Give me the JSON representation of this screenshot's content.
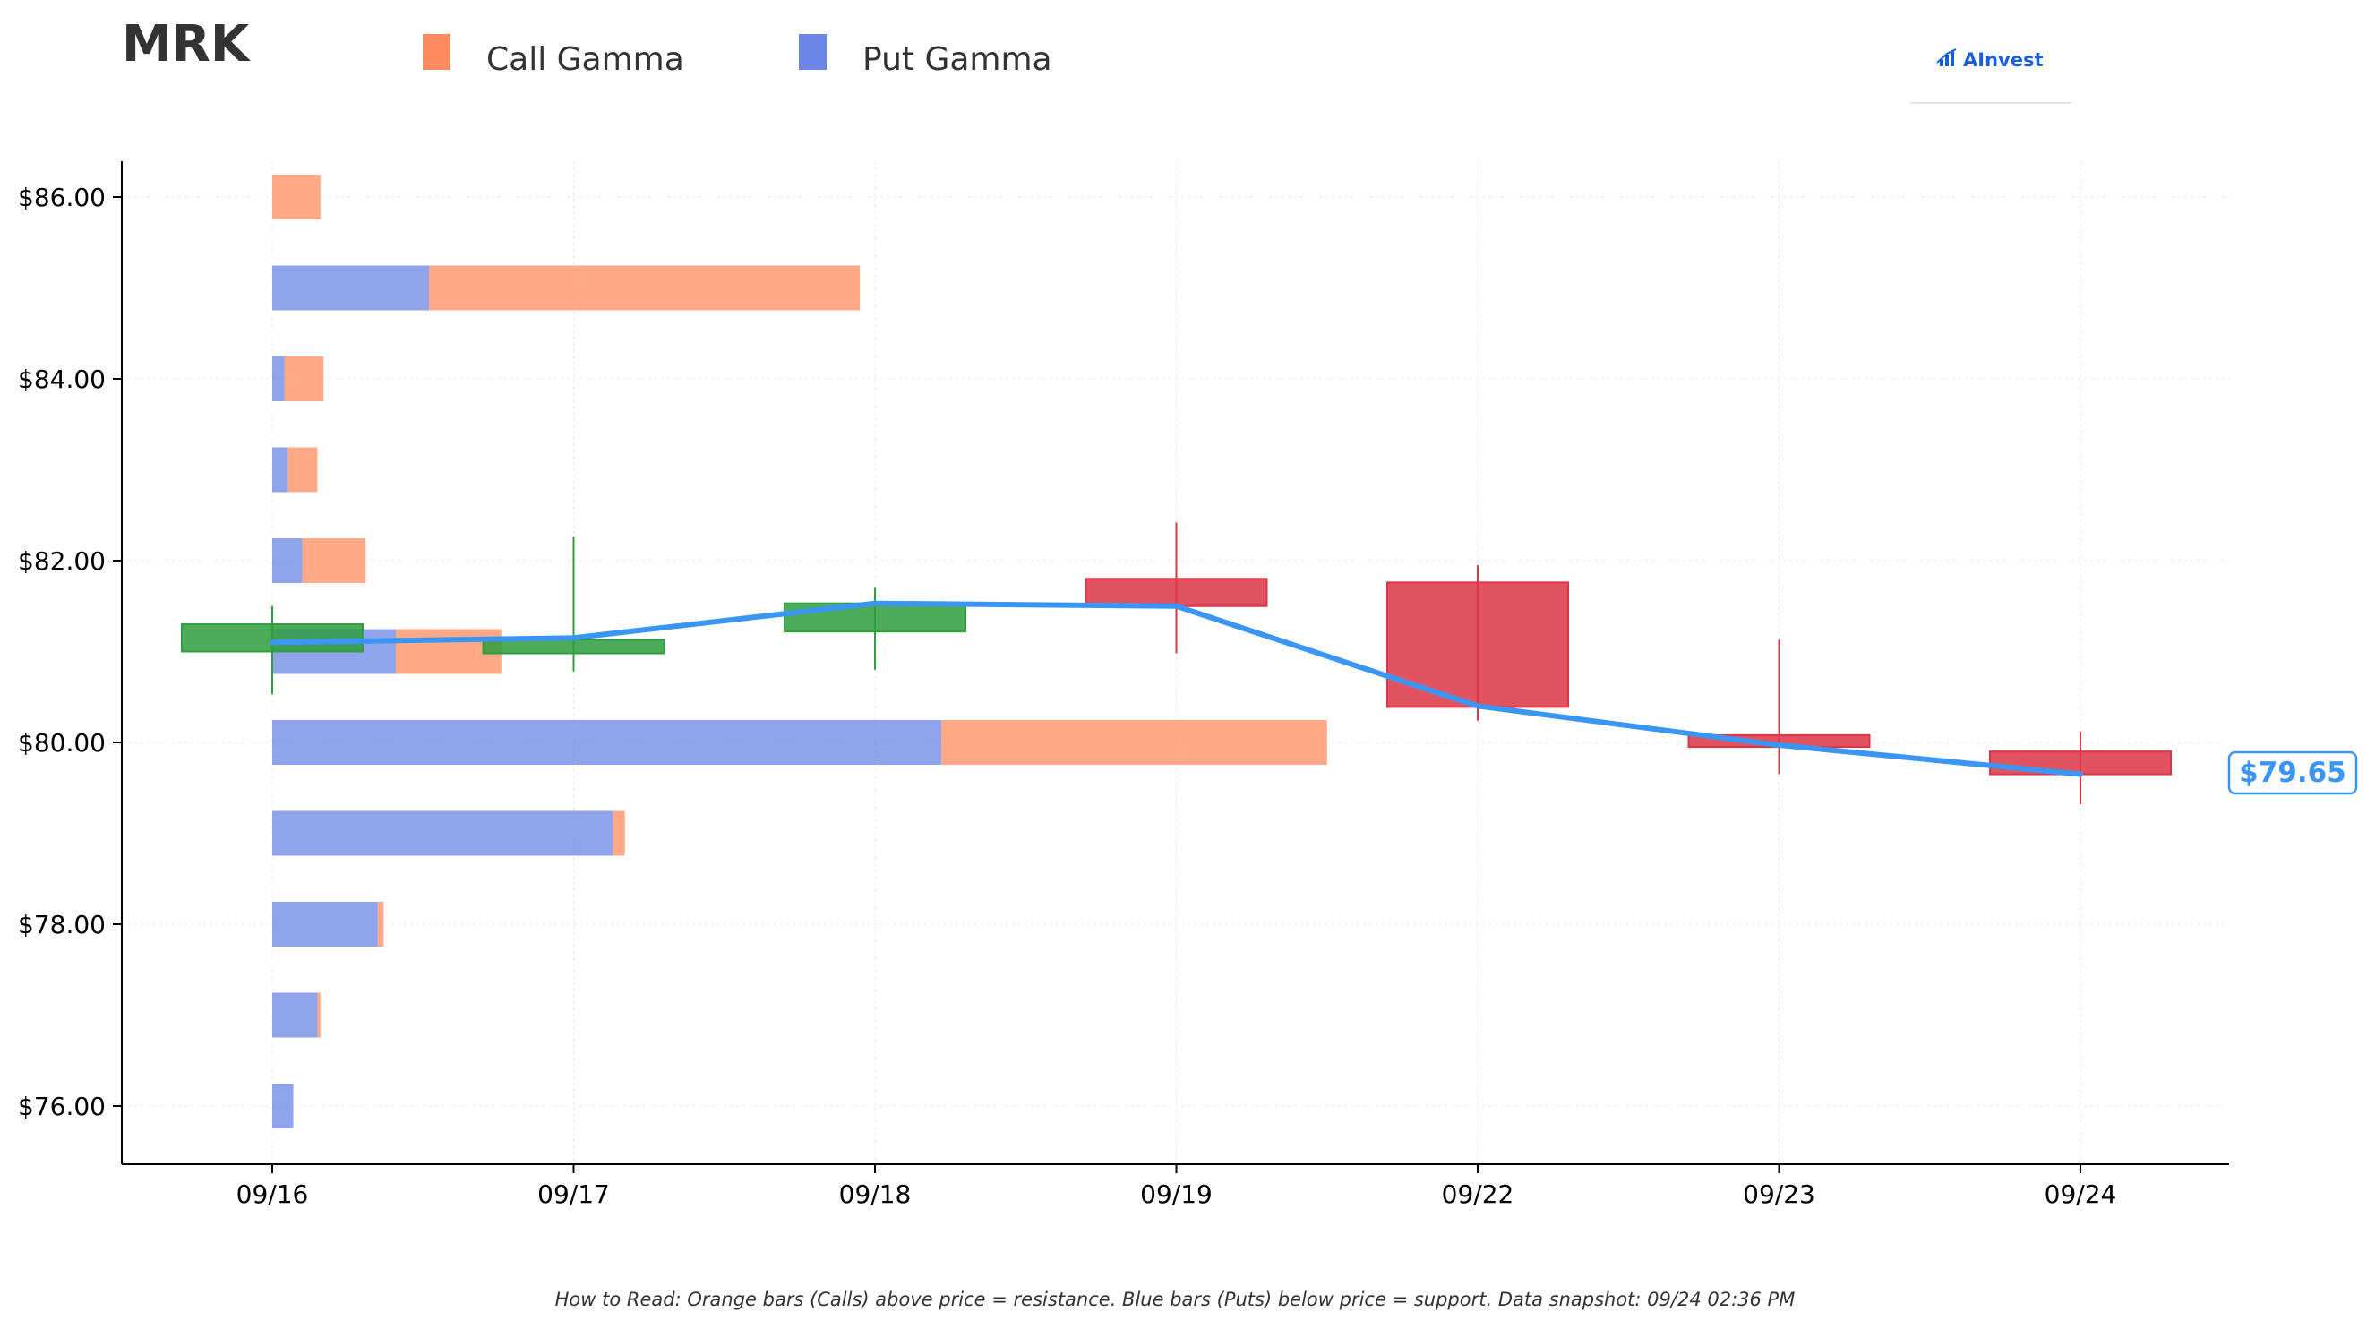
{
  "ticker": "MRK",
  "legend": {
    "call_label": "Call Gamma",
    "put_label": "Put Gamma"
  },
  "logo": {
    "text": "AInvest",
    "icon": "bar-chart-logo-icon"
  },
  "current_price_label": "$79.65",
  "footnote": "How to Read: Orange bars (Calls) above price = resistance. Blue bars (Puts) below price = support. Data snapshot: 09/24 02:36 PM",
  "colors": {
    "call": "#FF8C5F",
    "put": "#6B85E6",
    "up": "#2E9E3E",
    "down": "#DC3545",
    "price_line": "#3A96F2",
    "axis": "#000000",
    "grid": "#E8E8E8"
  },
  "chart_data": {
    "type": "candlestick",
    "x_labels": [
      "09/16",
      "09/17",
      "09/18",
      "09/19",
      "09/22",
      "09/23",
      "09/24"
    ],
    "y_ticks": [
      76,
      78,
      80,
      82,
      84,
      86
    ],
    "y_tick_labels": [
      "$76.00",
      "$78.00",
      "$80.00",
      "$82.00",
      "$84.00",
      "$86.00"
    ],
    "ylim": [
      75.35,
      86.4
    ],
    "xlim": [
      -0.5,
      6.5
    ],
    "grid": true,
    "candles": [
      {
        "date": "09/16",
        "open": 81.0,
        "close": 81.3,
        "high": 81.5,
        "low": 80.53
      },
      {
        "date": "09/17",
        "open": 80.98,
        "close": 81.13,
        "high": 82.26,
        "low": 80.78
      },
      {
        "date": "09/18",
        "open": 81.22,
        "close": 81.53,
        "high": 81.7,
        "low": 80.8
      },
      {
        "date": "09/19",
        "open": 81.8,
        "close": 81.5,
        "high": 82.42,
        "low": 80.98
      },
      {
        "date": "09/22",
        "open": 81.76,
        "close": 80.39,
        "high": 81.95,
        "low": 80.24
      },
      {
        "date": "09/23",
        "open": 80.08,
        "close": 79.95,
        "high": 81.13,
        "low": 79.65
      },
      {
        "date": "09/24",
        "open": 79.9,
        "close": 79.65,
        "high": 80.12,
        "low": 79.32
      }
    ],
    "price_line": {
      "name": "Price",
      "values": [
        81.1,
        81.15,
        81.53,
        81.5,
        80.4,
        79.97,
        79.65
      ]
    },
    "gamma_profile": {
      "strikes": [
        86,
        85,
        84,
        83,
        82,
        81,
        80,
        79,
        78,
        77,
        76
      ],
      "put_gamma": [
        0,
        0.52,
        0.04,
        0.05,
        0.1,
        0.41,
        2.22,
        1.13,
        0.35,
        0.15,
        0.07
      ],
      "call_gamma": [
        0.16,
        1.43,
        0.13,
        0.1,
        0.21,
        0.35,
        1.28,
        0.04,
        0.02,
        0.01,
        0
      ],
      "x_units": "trading days from 09/16"
    }
  }
}
